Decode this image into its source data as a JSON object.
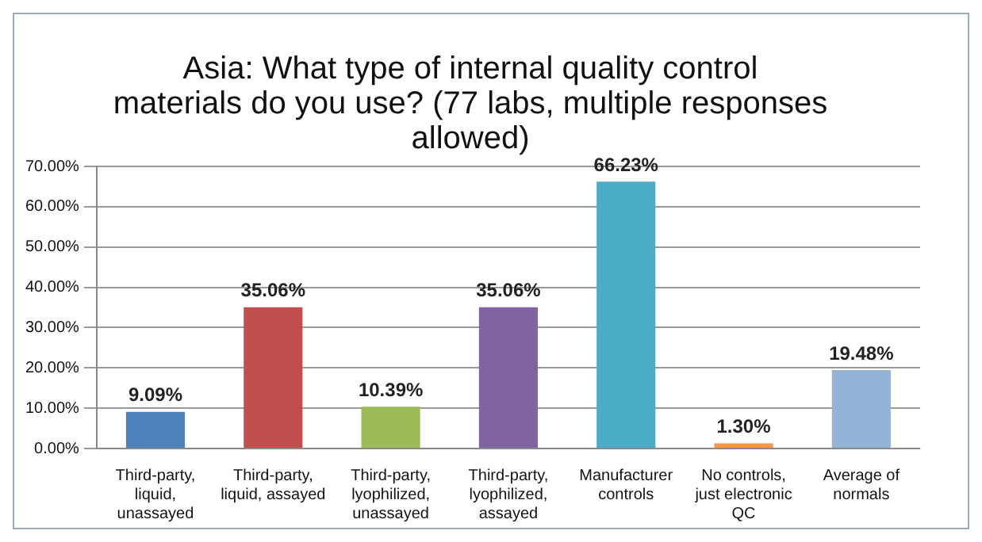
{
  "chart_data": {
    "type": "bar",
    "title": "Asia: What type of internal quality control materials do you use? (77 labs, multiple responses allowed)",
    "categories": [
      "Third-party, liquid, unassayed",
      "Third-party, liquid, assayed",
      "Third-party, lyophilized, unassayed",
      "Third-party, lyophilized, assayed",
      "Manufacturer controls",
      "No controls, just electronic QC",
      "Average of normals"
    ],
    "values": [
      9.09,
      35.06,
      10.39,
      35.06,
      66.23,
      1.3,
      19.48
    ],
    "value_labels": [
      "9.09%",
      "35.06%",
      "10.39%",
      "35.06%",
      "66.23%",
      "1.30%",
      "19.48%"
    ],
    "colors": [
      "#4f81bd",
      "#c0504d",
      "#9bbb59",
      "#8064a2",
      "#4bacc6",
      "#f79646",
      "#95b3d7"
    ],
    "ylim": [
      0,
      70
    ],
    "yticks": [
      {
        "value": 0,
        "label": "0.00%"
      },
      {
        "value": 10,
        "label": "10.00%"
      },
      {
        "value": 20,
        "label": "20.00%"
      },
      {
        "value": 30,
        "label": "30.00%"
      },
      {
        "value": 40,
        "label": "40.00%"
      },
      {
        "value": 50,
        "label": "50.00%"
      },
      {
        "value": 60,
        "label": "60.00%"
      },
      {
        "value": 70,
        "label": "70.00%"
      }
    ],
    "grid": "y",
    "legend": false
  }
}
